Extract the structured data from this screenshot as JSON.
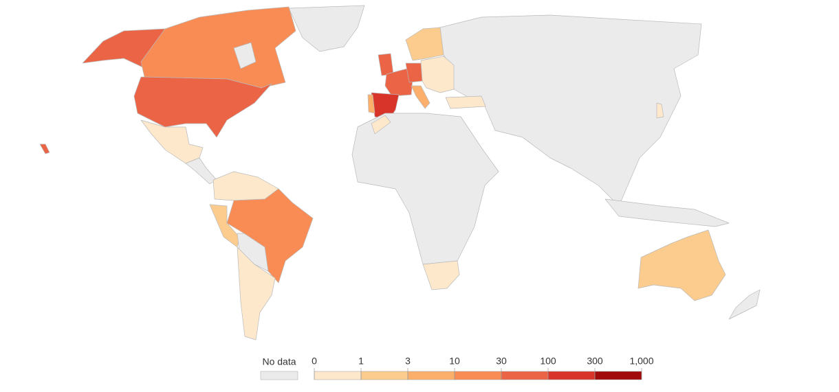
{
  "legend": {
    "no_data": {
      "label": "No data",
      "color": "#ebebeb"
    },
    "ticks": [
      "0",
      "1",
      "3",
      "10",
      "30",
      "100",
      "300",
      "1,000"
    ],
    "colors": [
      "#fde8cc",
      "#fccc8e",
      "#fbaf6a",
      "#f88c54",
      "#ec6446",
      "#d9342a",
      "#a10b0b"
    ]
  }
}
